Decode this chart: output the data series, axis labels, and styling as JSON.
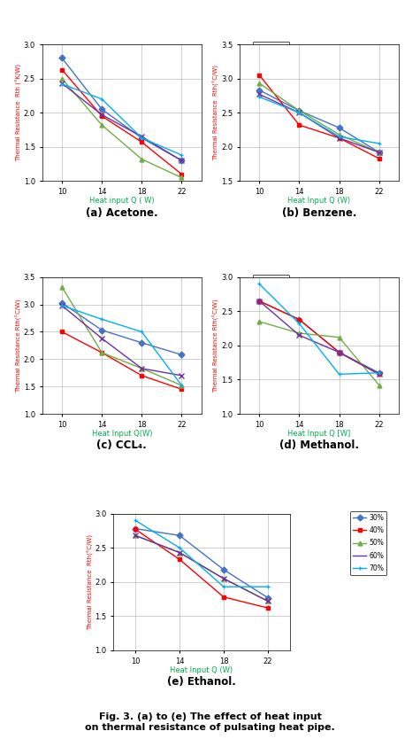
{
  "x": [
    10,
    14,
    18,
    22
  ],
  "acetone": {
    "30": [
      2.8,
      2.05,
      1.63,
      1.3
    ],
    "40": [
      2.63,
      1.95,
      1.57,
      1.1
    ],
    "50": [
      2.5,
      1.82,
      1.32,
      1.05
    ],
    "60": [
      2.43,
      1.97,
      1.65,
      1.3
    ],
    "70": [
      2.42,
      2.2,
      1.63,
      1.38
    ]
  },
  "benzene": {
    "30": [
      2.83,
      2.53,
      2.28,
      1.92
    ],
    "40": [
      3.05,
      2.32,
      2.13,
      1.83
    ],
    "50": [
      2.93,
      2.53,
      2.18,
      1.92
    ],
    "60": [
      2.77,
      2.5,
      2.13,
      1.92
    ],
    "70": [
      2.73,
      2.5,
      2.15,
      2.05
    ]
  },
  "ccl4": {
    "30": [
      3.03,
      2.53,
      2.3,
      2.08
    ],
    "40": [
      2.5,
      2.12,
      1.7,
      1.45
    ],
    "50": [
      3.32,
      2.12,
      1.83,
      1.52
    ],
    "60": [
      2.98,
      2.38,
      1.83,
      1.7
    ],
    "70": [
      2.98,
      2.73,
      2.5,
      1.52
    ]
  },
  "methanol": {
    "30": [
      2.65,
      2.38,
      1.9,
      1.6
    ],
    "40": [
      2.65,
      2.38,
      1.9,
      1.58
    ],
    "50": [
      2.35,
      2.18,
      2.12,
      1.42
    ],
    "60": [
      2.65,
      2.15,
      1.9,
      1.58
    ],
    "70": [
      2.9,
      2.32,
      1.58,
      1.6
    ]
  },
  "ethanol": {
    "30": [
      2.78,
      2.68,
      2.18,
      1.77
    ],
    "40": [
      2.77,
      2.33,
      1.78,
      1.62
    ],
    "50": [
      2.68,
      2.43,
      2.05,
      1.72
    ],
    "60": [
      2.68,
      2.43,
      2.05,
      1.72
    ],
    "70": [
      2.9,
      2.5,
      1.93,
      1.93
    ]
  },
  "colors": {
    "30": "#4472C4",
    "40": "#FF0000",
    "50": "#70AD47",
    "60": "#7030A0",
    "70": "#00B0F0"
  },
  "markers": {
    "30": "D",
    "40": "s",
    "50": "^",
    "60": "-",
    "70": "+"
  },
  "legend_labels": [
    "30%",
    "40%",
    "50%",
    "60%",
    "70%"
  ],
  "xlabel_color": "#00B050",
  "ylabel_color": "#FF0000",
  "ylim_acetone": [
    1,
    3
  ],
  "ylim_benzene": [
    1.5,
    3.5
  ],
  "ylim_ccl4": [
    1,
    3.5
  ],
  "ylim_methanol": [
    1,
    3
  ],
  "ylim_ethanol": [
    1,
    3
  ],
  "yticks_acetone": [
    1,
    1.5,
    2,
    2.5,
    3
  ],
  "yticks_benzene": [
    1.5,
    2,
    2.5,
    3,
    3.5
  ],
  "yticks_ccl4": [
    1,
    1.5,
    2,
    2.5,
    3,
    3.5
  ],
  "yticks_methanol": [
    1,
    1.5,
    2,
    2.5,
    3
  ],
  "yticks_ethanol": [
    1,
    1.5,
    2,
    2.5,
    3
  ],
  "xticks": [
    10,
    14,
    18,
    22
  ],
  "title_a": "(a) Acetone.",
  "title_b": "(b) Benzene.",
  "title_c": "(c) CCL₄.",
  "title_d": "(d) Methanol.",
  "title_e": "(e) Ethanol.",
  "ylabel_acetone": "Thermal Resistance  Rth (°K/W)",
  "ylabel_benzene": "Thermal Resistance  Rth(°C/W)",
  "ylabel_ccl4": "Thermal Resistance Rth(°C/W)",
  "ylabel_methanol": "Thermal Resistance Rth(°C/W)",
  "ylabel_ethanol": "Thermal Resistance  Rth(°C/W)",
  "xlabel_a": "Heat input Q ( W)",
  "xlabel_b": "Heat Input Q (W)",
  "xlabel_c": "Heat Input Q(W)",
  "xlabel_d": "Heat Input Q [W]",
  "xlabel_e": "Heat Input Q (W)",
  "fig_caption": "Fig. 3. (a) to (e) The effect of heat input\non thermal resistance of pulsating heat pipe."
}
